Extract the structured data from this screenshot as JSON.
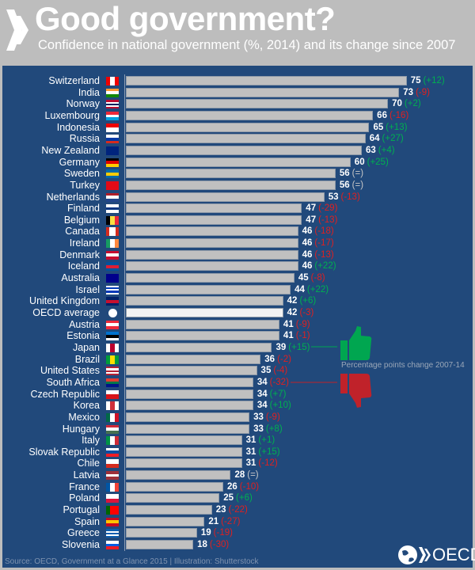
{
  "header": {
    "title": "Good government?",
    "subtitle": "Confidence in national government (%, 2014) and its change since 2007"
  },
  "footer": {
    "source": "Source: OECD, Government at a Glance 2015 | Illustration: Shutterstock",
    "brand": "OECD"
  },
  "legend": {
    "text": "Percentage points change 2007-14",
    "positive_color": "#00a650",
    "negative_color": "#c0222a"
  },
  "colors": {
    "panel": "#21497b",
    "bar": "#c0c0c0",
    "highlight_bar": "#f2f2f2",
    "positive": "#00b050",
    "negative": "#e02020",
    "neutral": "#c8c8c8"
  },
  "chart_data": {
    "type": "bar",
    "orientation": "horizontal",
    "xlim": [
      0,
      75
    ],
    "grid": false,
    "rows": [
      {
        "country": "Switzerland",
        "value": 75,
        "change": "+12",
        "flag": [
          "#e00",
          "#fff",
          "#e00"
        ],
        "dir": "v"
      },
      {
        "country": "India",
        "value": 73,
        "change": "-9",
        "flag": [
          "#f93",
          "#fff",
          "#138808"
        ],
        "dir": "h"
      },
      {
        "country": "Norway",
        "value": 70,
        "change": "+2",
        "flag": [
          "#ba0c2f",
          "#fff",
          "#00205b",
          "#fff",
          "#ba0c2f"
        ],
        "dir": "h"
      },
      {
        "country": "Luxembourg",
        "value": 66,
        "change": "-16",
        "flag": [
          "#ed2939",
          "#fff",
          "#00a1de"
        ],
        "dir": "h"
      },
      {
        "country": "Indonesia",
        "value": 65,
        "change": "+13",
        "flag": [
          "#e00",
          "#fff"
        ],
        "dir": "h"
      },
      {
        "country": "Russia",
        "value": 64,
        "change": "+27",
        "flag": [
          "#fff",
          "#0039a6",
          "#d52b1e"
        ],
        "dir": "h"
      },
      {
        "country": "New Zealand",
        "value": 63,
        "change": "+4",
        "flag": [
          "#00247d",
          "#00247d"
        ],
        "dir": "h"
      },
      {
        "country": "Germany",
        "value": 60,
        "change": "+25",
        "flag": [
          "#000",
          "#d00",
          "#fc0"
        ],
        "dir": "h"
      },
      {
        "country": "Sweden",
        "value": 56,
        "change": "=",
        "flag": [
          "#006aa7",
          "#fecc00",
          "#006aa7"
        ],
        "dir": "h"
      },
      {
        "country": "Turkey",
        "value": 56,
        "change": "=",
        "flag": [
          "#e30a17",
          "#e30a17"
        ],
        "dir": "h"
      },
      {
        "country": "Netherlands",
        "value": 53,
        "change": "-13",
        "flag": [
          "#ae1c28",
          "#fff",
          "#21468b"
        ],
        "dir": "h"
      },
      {
        "country": "Finland",
        "value": 47,
        "change": "-29",
        "flag": [
          "#fff",
          "#003580",
          "#fff"
        ],
        "dir": "h"
      },
      {
        "country": "Belgium",
        "value": 47,
        "change": "-13",
        "flag": [
          "#000",
          "#fae042",
          "#ed2939"
        ],
        "dir": "v"
      },
      {
        "country": "Canada",
        "value": 46,
        "change": "-18",
        "flag": [
          "#d52b1e",
          "#fff",
          "#fff",
          "#d52b1e"
        ],
        "dir": "v"
      },
      {
        "country": "Ireland",
        "value": 46,
        "change": "-17",
        "flag": [
          "#169b62",
          "#fff",
          "#ff883e"
        ],
        "dir": "v"
      },
      {
        "country": "Denmark",
        "value": 46,
        "change": "-13",
        "flag": [
          "#c60c30",
          "#fff",
          "#c60c30"
        ],
        "dir": "h"
      },
      {
        "country": "Iceland",
        "value": 46,
        "change": "+22",
        "flag": [
          "#02529c",
          "#dc1e35",
          "#02529c"
        ],
        "dir": "h"
      },
      {
        "country": "Australia",
        "value": 45,
        "change": "-8",
        "flag": [
          "#00008b",
          "#00008b"
        ],
        "dir": "h"
      },
      {
        "country": "Israel",
        "value": 44,
        "change": "+22",
        "flag": [
          "#fff",
          "#0038b8",
          "#fff",
          "#0038b8",
          "#fff"
        ],
        "dir": "h"
      },
      {
        "country": "United Kingdom",
        "value": 42,
        "change": "+6",
        "flag": [
          "#012169",
          "#c8102e",
          "#012169"
        ],
        "dir": "h"
      },
      {
        "country": "OECD average",
        "value": 42,
        "change": "-3",
        "flag": [
          "#fff",
          "#fff"
        ],
        "dir": "h",
        "highlight": true
      },
      {
        "country": "Austria",
        "value": 41,
        "change": "-9",
        "flag": [
          "#ed2939",
          "#fff",
          "#ed2939"
        ],
        "dir": "h"
      },
      {
        "country": "Estonia",
        "value": 41,
        "change": "-1",
        "flag": [
          "#0072ce",
          "#000",
          "#fff"
        ],
        "dir": "h"
      },
      {
        "country": "Japan",
        "value": 39,
        "change": "+15",
        "flag": [
          "#fff",
          "#bc002d",
          "#fff"
        ],
        "dir": "v"
      },
      {
        "country": "Brazil",
        "value": 36,
        "change": "-2",
        "flag": [
          "#009c3b",
          "#ffdf00",
          "#009c3b"
        ],
        "dir": "v"
      },
      {
        "country": "United States",
        "value": 35,
        "change": "-4",
        "flag": [
          "#b22234",
          "#fff",
          "#b22234",
          "#fff",
          "#b22234"
        ],
        "dir": "h"
      },
      {
        "country": "South Africa",
        "value": 34,
        "change": "-32",
        "flag": [
          "#e03c31",
          "#007749",
          "#001489"
        ],
        "dir": "h"
      },
      {
        "country": "Czech Republic",
        "value": 34,
        "change": "+7",
        "flag": [
          "#fff",
          "#d7141a"
        ],
        "dir": "h"
      },
      {
        "country": "Korea",
        "value": 34,
        "change": "+10",
        "flag": [
          "#fff",
          "#cd2e3a",
          "#fff"
        ],
        "dir": "v"
      },
      {
        "country": "Mexico",
        "value": 33,
        "change": "-9",
        "flag": [
          "#006847",
          "#fff",
          "#ce1126"
        ],
        "dir": "v"
      },
      {
        "country": "Hungary",
        "value": 33,
        "change": "+8",
        "flag": [
          "#ce2939",
          "#fff",
          "#477050"
        ],
        "dir": "h"
      },
      {
        "country": "Italy",
        "value": 31,
        "change": "+1",
        "flag": [
          "#009246",
          "#fff",
          "#ce2b37"
        ],
        "dir": "v"
      },
      {
        "country": "Slovak Republic",
        "value": 31,
        "change": "+15",
        "flag": [
          "#fff",
          "#0b4ea2",
          "#ee1c25"
        ],
        "dir": "h"
      },
      {
        "country": "Chile",
        "value": 31,
        "change": "-12",
        "flag": [
          "#fff",
          "#d52b1e"
        ],
        "dir": "h"
      },
      {
        "country": "Latvia",
        "value": 28,
        "change": "=",
        "flag": [
          "#9e3039",
          "#fff",
          "#9e3039"
        ],
        "dir": "h"
      },
      {
        "country": "France",
        "value": 26,
        "change": "-10",
        "flag": [
          "#0055a4",
          "#fff",
          "#ef4135"
        ],
        "dir": "v"
      },
      {
        "country": "Poland",
        "value": 25,
        "change": "+6",
        "flag": [
          "#fff",
          "#dc143c"
        ],
        "dir": "h"
      },
      {
        "country": "Portugal",
        "value": 23,
        "change": "-22",
        "flag": [
          "#006600",
          "#f00",
          "#f00"
        ],
        "dir": "v"
      },
      {
        "country": "Spain",
        "value": 21,
        "change": "-27",
        "flag": [
          "#c60b1e",
          "#ffc400",
          "#c60b1e"
        ],
        "dir": "h"
      },
      {
        "country": "Greece",
        "value": 19,
        "change": "-19",
        "flag": [
          "#0d5eaf",
          "#fff",
          "#0d5eaf",
          "#fff",
          "#0d5eaf"
        ],
        "dir": "h"
      },
      {
        "country": "Slovenia",
        "value": 18,
        "change": "-30",
        "flag": [
          "#fff",
          "#005ce5",
          "#ed1c24"
        ],
        "dir": "h"
      }
    ]
  }
}
